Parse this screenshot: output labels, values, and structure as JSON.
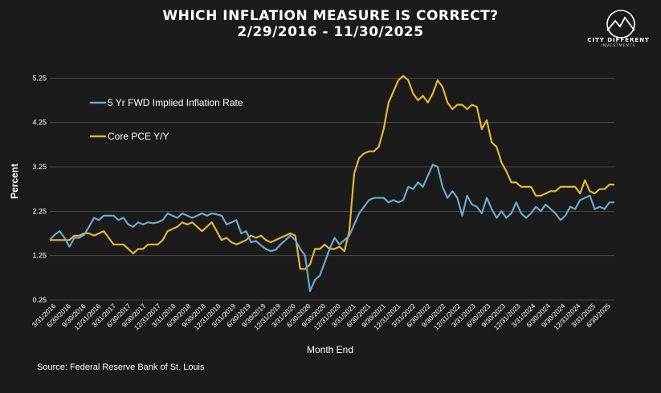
{
  "header": {
    "title": "WHICH INFLATION MEASURE IS CORRECT?",
    "subtitle": "2/29/2016 - 11/30/2025"
  },
  "logo": {
    "name": "CITY DIFFERENT",
    "sub": "INVESTMENTS"
  },
  "source": "Source: Federal Reserve Bank of St. Louis",
  "colors": {
    "background": "#1b1b1b",
    "series1": "#6fa8cc",
    "series2": "#e3b733",
    "grid": "#555555"
  },
  "chart_data": {
    "type": "line",
    "xlabel": "Month End",
    "ylabel": "Percent",
    "ylim": [
      0.25,
      5.6
    ],
    "yticks": [
      "0.25",
      "1.25",
      "2.25",
      "3.25",
      "4.25",
      "5.25"
    ],
    "legend_position": "top-left",
    "x_tick_labels": [
      "3/31/2016",
      "6/30/2016",
      "9/30/2016",
      "12/31/2016",
      "3/31/2017",
      "6/30/2017",
      "9/30/2017",
      "12/31/2017",
      "3/31/2018",
      "6/30/2018",
      "9/30/2018",
      "12/31/2018",
      "3/31/2019",
      "6/30/2019",
      "9/30/2019",
      "12/31/2019",
      "3/31/2020",
      "6/30/2020",
      "9/30/2020",
      "12/31/2020",
      "3/31/2021",
      "6/30/2021",
      "9/30/2021",
      "12/31/2021",
      "3/31/2022",
      "6/30/2022",
      "9/30/2022",
      "12/31/2022",
      "3/31/2023",
      "6/30/2023",
      "9/30/2023",
      "12/31/2023",
      "3/31/2024",
      "6/30/2024",
      "9/30/2024",
      "12/31/2024",
      "3/31/2025",
      "6/30/2025"
    ],
    "series": [
      {
        "name": "5 Yr FWD Implied Inflation Rate",
        "values": [
          1.6,
          1.72,
          1.8,
          1.65,
          1.45,
          1.65,
          1.65,
          1.72,
          1.9,
          2.1,
          2.05,
          2.15,
          2.15,
          2.15,
          2.05,
          2.1,
          1.95,
          1.9,
          2.0,
          1.95,
          2.0,
          1.98,
          2.0,
          2.05,
          2.2,
          2.15,
          2.1,
          2.2,
          2.15,
          2.1,
          2.15,
          2.2,
          2.15,
          2.2,
          2.18,
          2.15,
          1.95,
          2.0,
          2.05,
          1.75,
          1.8,
          1.55,
          1.58,
          1.48,
          1.4,
          1.35,
          1.38,
          1.5,
          1.6,
          1.7,
          1.6,
          1.4,
          1.25,
          0.45,
          0.7,
          0.8,
          1.1,
          1.4,
          1.65,
          1.5,
          1.6,
          1.7,
          1.95,
          2.2,
          2.35,
          2.5,
          2.55,
          2.55,
          2.55,
          2.45,
          2.5,
          2.45,
          2.5,
          2.8,
          2.75,
          2.9,
          2.8,
          3.05,
          3.3,
          3.25,
          2.8,
          2.55,
          2.7,
          2.55,
          2.15,
          2.6,
          2.4,
          2.35,
          2.2,
          2.55,
          2.3,
          2.1,
          2.25,
          2.1,
          2.2,
          2.45,
          2.2,
          2.1,
          2.2,
          2.35,
          2.25,
          2.4,
          2.3,
          2.2,
          2.05,
          2.15,
          2.35,
          2.3,
          2.5,
          2.55,
          2.6,
          2.3,
          2.35,
          2.3,
          2.45,
          2.45
        ]
      },
      {
        "name": "Core PCE Y/Y",
        "values": [
          1.6,
          1.6,
          1.6,
          1.6,
          1.6,
          1.7,
          1.7,
          1.75,
          1.75,
          1.7,
          1.75,
          1.8,
          1.65,
          1.5,
          1.5,
          1.5,
          1.4,
          1.3,
          1.4,
          1.4,
          1.5,
          1.5,
          1.5,
          1.6,
          1.8,
          1.85,
          1.9,
          2.0,
          1.95,
          2.0,
          1.9,
          1.8,
          1.9,
          2.0,
          1.8,
          1.6,
          1.65,
          1.55,
          1.5,
          1.55,
          1.6,
          1.7,
          1.65,
          1.7,
          1.6,
          1.55,
          1.6,
          1.65,
          1.7,
          1.75,
          1.7,
          0.95,
          0.95,
          1.05,
          1.4,
          1.4,
          1.5,
          1.4,
          1.4,
          1.45,
          1.35,
          1.8,
          3.1,
          3.45,
          3.55,
          3.6,
          3.6,
          3.7,
          4.1,
          4.7,
          4.95,
          5.2,
          5.3,
          5.2,
          4.9,
          4.75,
          4.85,
          4.7,
          4.9,
          5.2,
          5.05,
          4.7,
          4.55,
          4.65,
          4.65,
          4.55,
          4.65,
          4.6,
          4.1,
          4.3,
          3.8,
          3.7,
          3.35,
          3.15,
          2.9,
          2.9,
          2.8,
          2.8,
          2.8,
          2.6,
          2.6,
          2.65,
          2.7,
          2.7,
          2.8,
          2.8,
          2.8,
          2.8,
          2.65,
          2.95,
          2.7,
          2.65,
          2.75,
          2.75,
          2.85,
          2.85
        ]
      }
    ]
  }
}
